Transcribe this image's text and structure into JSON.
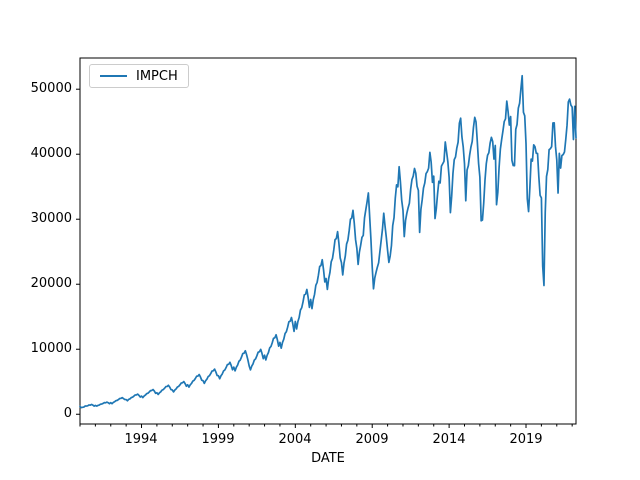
{
  "chart_data": {
    "type": "line",
    "title": "",
    "xlabel": "DATE",
    "ylabel": "",
    "grid": false,
    "legend": {
      "position": "upper-left",
      "entries": [
        "IMPCH"
      ]
    },
    "xlim": [
      1990.0,
      2022.25
    ],
    "ylim": [
      -1500,
      54800
    ],
    "x_minor_tick_years": {
      "start": 1990,
      "end": 2022,
      "step": 1
    },
    "x_ticks_major": [
      1994,
      1999,
      2004,
      2009,
      2014,
      2019
    ],
    "x_tick_labels": [
      "1994",
      "1999",
      "2004",
      "2009",
      "2014",
      "2019"
    ],
    "y_ticks": [
      0,
      10000,
      20000,
      30000,
      40000,
      50000
    ],
    "y_tick_labels": [
      "0",
      "10000",
      "20000",
      "30000",
      "40000",
      "50000"
    ],
    "series": [
      {
        "name": "IMPCH",
        "color": "#1f77b4",
        "frequency": "monthly",
        "start_year": 1990,
        "start_month": 1,
        "end_year": 2022,
        "end_month": 4,
        "values": [
          1188,
          1021,
          1072,
          1111,
          1266,
          1259,
          1296,
          1431,
          1397,
          1511,
          1411,
          1256,
          1357,
          1256,
          1353,
          1408,
          1552,
          1573,
          1666,
          1787,
          1760,
          1868,
          1773,
          1620,
          1785,
          1624,
          1820,
          1923,
          2085,
          2135,
          2260,
          2425,
          2451,
          2554,
          2391,
          2269,
          2259,
          2075,
          2290,
          2372,
          2563,
          2625,
          2781,
          2958,
          2970,
          3102,
          2908,
          2645,
          2791,
          2567,
          2799,
          2942,
          3162,
          3237,
          3416,
          3634,
          3657,
          3809,
          3569,
          3222,
          3308,
          3042,
          3299,
          3450,
          3712,
          3795,
          4004,
          4254,
          4281,
          4450,
          4170,
          3790,
          3735,
          3437,
          3730,
          3900,
          4195,
          4290,
          4524,
          4809,
          4837,
          5027,
          4710,
          4310,
          4540,
          4175,
          4532,
          4738,
          5098,
          5212,
          5497,
          5843,
          5877,
          6109,
          5724,
          5230,
          5162,
          4748,
          5153,
          5388,
          5797,
          5927,
          6251,
          6644,
          6683,
          6946,
          6508,
          5950,
          5934,
          5458,
          5924,
          6194,
          6664,
          6813,
          7186,
          7638,
          7683,
          7986,
          7482,
          6840,
          7254,
          6672,
          7242,
          7572,
          8147,
          8329,
          8785,
          9337,
          9392,
          9762,
          9146,
          8360,
          7420,
          6825,
          7408,
          7746,
          8334,
          8520,
          8986,
          9551,
          9607,
          9986,
          9356,
          8553,
          9080,
          8352,
          9065,
          9478,
          10198,
          10426,
          10996,
          11687,
          11756,
          12219,
          11449,
          10466,
          11057,
          10171,
          11039,
          11542,
          12419,
          12697,
          13390,
          14232,
          14316,
          14880,
          13942,
          12745,
          14267,
          13123,
          14243,
          14892,
          16023,
          16382,
          17276,
          18363,
          18471,
          19199,
          17988,
          16443,
          17661,
          16244,
          17631,
          18434,
          19834,
          20279,
          21385,
          22729,
          22864,
          23765,
          22267,
          20354,
          20874,
          19200,
          20838,
          21788,
          23442,
          23967,
          25275,
          26864,
          27023,
          28087,
          26317,
          24057,
          23311,
          21441,
          23271,
          24332,
          26178,
          26766,
          28227,
          30001,
          30178,
          31366,
          29388,
          26866,
          25537,
          23048,
          24942,
          26007,
          27216,
          27508,
          30217,
          31474,
          32692,
          34031,
          30473,
          26867,
          22636,
          19301,
          20972,
          21828,
          22617,
          23295,
          25049,
          26753,
          28473,
          30930,
          28963,
          27190,
          25193,
          23364,
          24338,
          25930,
          29019,
          30224,
          33256,
          35288,
          34986,
          38082,
          35763,
          32912,
          31382,
          27337,
          29803,
          30909,
          31749,
          32464,
          34650,
          36088,
          36640,
          37808,
          37068,
          35072,
          34444,
          27980,
          31535,
          33003,
          34800,
          35559,
          37026,
          37322,
          37862,
          40290,
          38762,
          35674,
          36625,
          30100,
          31616,
          33935,
          35840,
          35573,
          38170,
          38535,
          38904,
          41884,
          40402,
          38862,
          36437,
          31017,
          33537,
          37060,
          39160,
          39571,
          40949,
          41843,
          44768,
          45536,
          42664,
          41141,
          38551,
          32843,
          37565,
          38242,
          39836,
          41078,
          41945,
          44134,
          45677,
          44953,
          41921,
          38584,
          36466,
          29753,
          29879,
          32491,
          36040,
          38524,
          39833,
          40234,
          41721,
          42595,
          41957,
          39260,
          41337,
          32233,
          34151,
          37985,
          40804,
          42261,
          43588,
          45021,
          45444,
          48170,
          46574,
          44482,
          45788,
          39067,
          38255,
          38231,
          43820,
          44571,
          47088,
          47843,
          50021,
          52082,
          46451,
          45907,
          41599,
          33154,
          31176,
          34840,
          39251,
          38949,
          41449,
          41151,
          40145,
          40115,
          36541,
          33667,
          33280,
          22813,
          19806,
          31071,
          36580,
          37640,
          40702,
          40846,
          41166,
          44810,
          44830,
          41192,
          39110,
          34029,
          40139,
          37866,
          39788,
          39948,
          40334,
          42253,
          44444,
          48043,
          48472,
          47556,
          47242,
          42260,
          47371,
          42514
        ]
      }
    ]
  }
}
